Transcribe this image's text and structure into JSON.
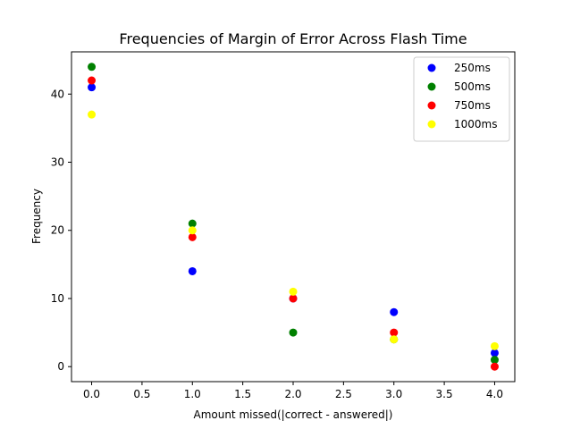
{
  "chart_data": {
    "type": "scatter",
    "title": "Frequencies of Margin of Error Across Flash Time",
    "xlabel": "Amount missed(|correct - answered|)",
    "ylabel": "Frequency",
    "xlim": [
      -0.2,
      4.2
    ],
    "ylim": [
      -2.2,
      46.2
    ],
    "xticks": [
      0.0,
      0.5,
      1.0,
      1.5,
      2.0,
      2.5,
      3.0,
      3.5,
      4.0
    ],
    "xtick_labels": [
      "0.0",
      "0.5",
      "1.0",
      "1.5",
      "2.0",
      "2.5",
      "3.0",
      "3.5",
      "4.0"
    ],
    "yticks": [
      0,
      10,
      20,
      30,
      40
    ],
    "ytick_labels": [
      "0",
      "10",
      "20",
      "30",
      "40"
    ],
    "grid": false,
    "legend_position": "top-right",
    "x": [
      0,
      1,
      2,
      3,
      4
    ],
    "series": [
      {
        "name": "250ms",
        "color": "#0000ff",
        "values": [
          41,
          14,
          10,
          8,
          2
        ]
      },
      {
        "name": "500ms",
        "color": "#008000",
        "values": [
          44,
          21,
          5,
          4,
          1
        ]
      },
      {
        "name": "750ms",
        "color": "#ff0000",
        "values": [
          42,
          19,
          10,
          5,
          0
        ]
      },
      {
        "name": "1000ms",
        "color": "#ffff00",
        "values": [
          37,
          20,
          11,
          4,
          3
        ]
      }
    ]
  }
}
